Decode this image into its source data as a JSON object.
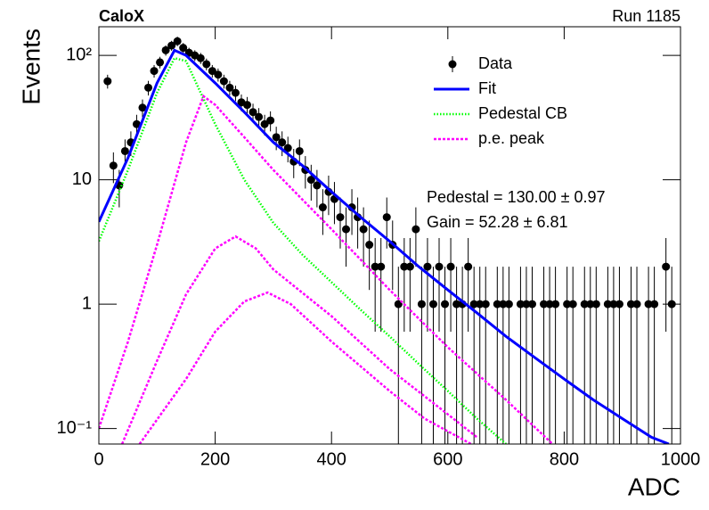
{
  "chart_data": {
    "type": "line",
    "title": "CaloX",
    "subtitle": "Run 1185",
    "x_label": "ADC",
    "y_label": "Events",
    "annotations": [
      "Pedestal = 130.00 ± 0.97",
      "Gain = 52.28 ± 6.81"
    ],
    "xlim": [
      0,
      1000
    ],
    "xticks": [
      0,
      200,
      400,
      600,
      800,
      1000
    ],
    "ylim": [
      0.075,
      170
    ],
    "log_y": true,
    "yticks": [
      {
        "value": 0.1,
        "label": "10⁻¹"
      },
      1,
      10,
      {
        "value": 100,
        "label": "10²"
      }
    ],
    "legend": "upper right",
    "series": [
      {
        "name": "Data",
        "kind": "errorbar",
        "color": "#000000",
        "x": [
          15,
          25,
          35,
          45,
          55,
          65,
          75,
          85,
          95,
          105,
          115,
          125,
          135,
          145,
          155,
          165,
          175,
          185,
          195,
          205,
          215,
          225,
          235,
          245,
          255,
          265,
          275,
          285,
          295,
          305,
          315,
          325,
          335,
          345,
          355,
          365,
          375,
          385,
          395,
          405,
          415,
          425,
          435,
          445,
          455,
          465,
          475,
          485,
          495,
          505,
          515,
          525,
          535,
          545,
          555,
          565,
          575,
          585,
          595,
          605,
          615,
          625,
          635,
          645,
          655,
          665,
          675,
          685,
          695,
          705,
          715,
          725,
          735,
          745,
          755,
          765,
          775,
          785,
          795,
          805,
          815,
          825,
          835,
          845,
          855,
          865,
          875,
          885,
          895,
          905,
          915,
          925,
          935,
          945,
          955,
          965,
          975,
          985
        ],
        "values": [
          62,
          13,
          9,
          17,
          20,
          28,
          38,
          55,
          75,
          88,
          110,
          120,
          130,
          115,
          105,
          100,
          95,
          85,
          75,
          70,
          62,
          55,
          50,
          42,
          40,
          35,
          32,
          28,
          30,
          22,
          20,
          18,
          14,
          17,
          12,
          10,
          9,
          6,
          8,
          7,
          5,
          4,
          6,
          5,
          4,
          3,
          2,
          2,
          5,
          3,
          1,
          2,
          2,
          4,
          1,
          2,
          1,
          2,
          1,
          2,
          1,
          1,
          2,
          1,
          1,
          1,
          null,
          1,
          1,
          1,
          null,
          1,
          1,
          1,
          null,
          1,
          1,
          1,
          null,
          1,
          1,
          null,
          1,
          1,
          1,
          null,
          1,
          1,
          1,
          null,
          1,
          1,
          null,
          1,
          1,
          null,
          2,
          1
        ],
        "errors": [
          7.9,
          3.6,
          3,
          4.1,
          4.5,
          5.3,
          6.2,
          7.4,
          8.7,
          9.4,
          10.5,
          11,
          11.4,
          10.7,
          10.2,
          10,
          9.7,
          9.2,
          8.7,
          8.4,
          7.9,
          7.4,
          7.1,
          6.5,
          6.3,
          5.9,
          5.7,
          5.3,
          5.5,
          4.7,
          4.5,
          4.2,
          3.7,
          4.1,
          3.5,
          3.2,
          3,
          2.4,
          2.8,
          2.6,
          2.2,
          2,
          2.4,
          2.2,
          2,
          1.7,
          1.4,
          1.4,
          2.2,
          1.7,
          1,
          1.4,
          1.4,
          2,
          1,
          1.4,
          1,
          1.4,
          1,
          1.4,
          1,
          1,
          1.4,
          1,
          1,
          1,
          null,
          1,
          1,
          1,
          null,
          1,
          1,
          1,
          null,
          1,
          1,
          1,
          null,
          1,
          1,
          null,
          1,
          1,
          1,
          null,
          1,
          1,
          1,
          null,
          1,
          1,
          null,
          1,
          1,
          null,
          1.4,
          1
        ]
      },
      {
        "name": "Fit",
        "kind": "line",
        "color": "#0000ff",
        "dash": "solid",
        "x": [
          0,
          50,
          100,
          130,
          150,
          200,
          250,
          300,
          350,
          400,
          450,
          500,
          550,
          600,
          650,
          700,
          750,
          800,
          850,
          900,
          950,
          980
        ],
        "values": [
          4.6,
          15,
          60,
          110,
          100,
          60,
          35,
          20,
          13,
          8,
          5,
          3.2,
          2.0,
          1.3,
          0.85,
          0.55,
          0.37,
          0.25,
          0.17,
          0.12,
          0.085,
          0.075
        ]
      },
      {
        "name": "Pedestal CB",
        "kind": "line",
        "color": "#00ff00",
        "dash": "dotted",
        "x": [
          0,
          50,
          100,
          130,
          150,
          200,
          250,
          300,
          350,
          400,
          450,
          500,
          550,
          600,
          650,
          700
        ],
        "values": [
          3.2,
          12,
          50,
          95,
          90,
          28,
          10,
          4.5,
          2.5,
          1.5,
          0.9,
          0.55,
          0.33,
          0.2,
          0.12,
          0.075
        ]
      },
      {
        "name": "p.e. peak",
        "kind": "line",
        "color": "#ff00ff",
        "dash": "dashed",
        "x": [
          0,
          50,
          100,
          150,
          180,
          200,
          250,
          300,
          400,
          500,
          600,
          700,
          780
        ],
        "values": [
          0.1,
          0.5,
          3,
          20,
          47,
          40,
          22,
          12,
          4,
          1.3,
          0.45,
          0.17,
          0.075
        ]
      },
      {
        "kind": "line",
        "color": "#ff00ff",
        "dash": "dashed",
        "x": [
          40,
          100,
          150,
          200,
          235,
          270,
          300,
          400,
          500,
          600,
          650
        ],
        "values": [
          0.075,
          0.35,
          1.2,
          2.8,
          3.5,
          2.8,
          1.9,
          0.8,
          0.3,
          0.13,
          0.085
        ]
      },
      {
        "kind": "line",
        "color": "#ff00ff",
        "dash": "dashed",
        "x": [
          70,
          150,
          200,
          250,
          290,
          330,
          400,
          500,
          560,
          640
        ],
        "values": [
          0.075,
          0.25,
          0.6,
          1.05,
          1.24,
          1.0,
          0.5,
          0.2,
          0.12,
          0.075
        ]
      }
    ]
  }
}
